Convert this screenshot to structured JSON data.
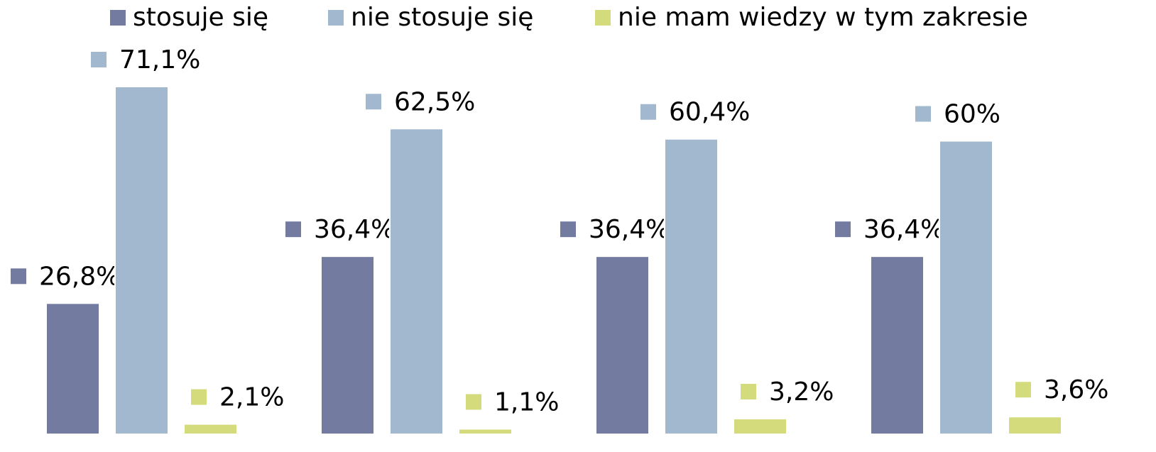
{
  "chart_data": {
    "type": "bar",
    "categories": [
      null,
      null,
      null,
      null
    ],
    "series": [
      {
        "name": "stosuje się",
        "color": "#737ba1",
        "values": [
          26.8,
          36.4,
          36.4,
          36.4
        ],
        "value_labels": [
          "26,8%",
          "36,4%",
          "36,4%",
          "36,4%"
        ]
      },
      {
        "name": "nie stosuje się",
        "color": "#a2b8ce",
        "values": [
          71.1,
          62.5,
          60.4,
          60
        ],
        "value_labels": [
          "71,1%",
          "62,5%",
          "60,4%",
          "60%"
        ]
      },
      {
        "name": "nie mam wiedzy w tym zakresie",
        "color": "#d4db7d",
        "values": [
          2.1,
          1.1,
          3.2,
          3.6
        ],
        "value_labels": [
          "2,1%",
          "1,1%",
          "3,2%",
          "3,6%"
        ]
      }
    ],
    "legend": "top"
  }
}
